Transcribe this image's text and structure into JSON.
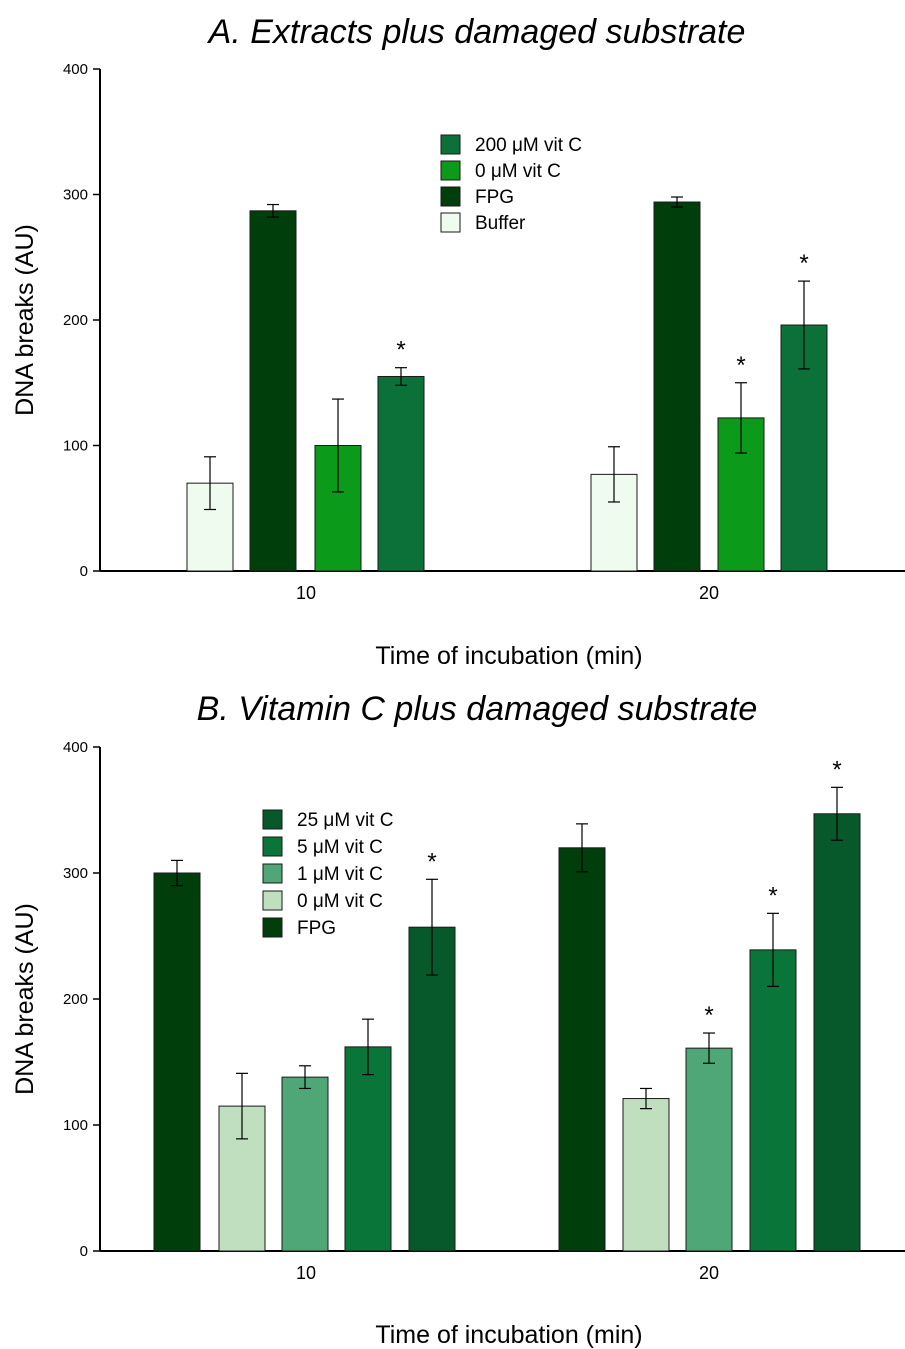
{
  "chart_data": [
    {
      "type": "bar",
      "title": "A. Extracts plus damaged substrate",
      "xlabel": "Time of incubation (min)",
      "ylabel": "DNA breaks (AU)",
      "ylim": [
        0,
        400
      ],
      "yticks": [
        "0",
        "100",
        "200",
        "300",
        "400"
      ],
      "categories": [
        "10",
        "20"
      ],
      "legend_position": "top-center",
      "legend": [
        "200 μM vit C",
        "0 μM vit C",
        "FPG",
        "Buffer"
      ],
      "significance_marker": "*",
      "series": [
        {
          "name": "Buffer",
          "color": "#f0fbef",
          "values": [
            70,
            77
          ],
          "errors": [
            21,
            22
          ],
          "significant": [
            false,
            false
          ]
        },
        {
          "name": "FPG",
          "color": "#003f0c",
          "values": [
            287,
            294
          ],
          "errors": [
            5,
            4
          ],
          "significant": [
            false,
            false
          ]
        },
        {
          "name": "0 μM vit C",
          "color": "#0c9a1a",
          "values": [
            100,
            122
          ],
          "errors": [
            37,
            28
          ],
          "significant": [
            false,
            true
          ]
        },
        {
          "name": "200 μM vit C",
          "color": "#0b7139",
          "values": [
            155,
            196
          ],
          "errors": [
            7,
            35
          ],
          "significant": [
            true,
            true
          ]
        }
      ]
    },
    {
      "type": "bar",
      "title": "B. Vitamin C plus damaged substrate",
      "xlabel": "Time of incubation (min)",
      "ylabel": "DNA breaks (AU)",
      "ylim": [
        0,
        400
      ],
      "yticks": [
        "0",
        "100",
        "200",
        "300",
        "400"
      ],
      "categories": [
        "10",
        "20"
      ],
      "legend_position": "top-left",
      "legend": [
        "25 μM vit C",
        "5 μM vit C",
        "1 μM vit C",
        "0 μM vit C",
        "FPG"
      ],
      "significance_marker": "*",
      "series": [
        {
          "name": "FPG",
          "color": "#003f0c",
          "values": [
            300,
            320
          ],
          "errors": [
            10,
            19
          ],
          "significant": [
            false,
            false
          ]
        },
        {
          "name": "0 μM vit C",
          "color": "#c0dfbf",
          "values": [
            115,
            121
          ],
          "errors": [
            26,
            8
          ],
          "significant": [
            false,
            false
          ]
        },
        {
          "name": "1 μM vit C",
          "color": "#4fa778",
          "values": [
            138,
            161
          ],
          "errors": [
            9,
            12
          ],
          "significant": [
            false,
            true
          ]
        },
        {
          "name": "5 μM vit C",
          "color": "#0a7538",
          "values": [
            162,
            239
          ],
          "errors": [
            22,
            29
          ],
          "significant": [
            false,
            true
          ]
        },
        {
          "name": "25 μM vit C",
          "color": "#07592b",
          "values": [
            257,
            347
          ],
          "errors": [
            38,
            21
          ],
          "significant": [
            true,
            true
          ]
        }
      ]
    }
  ]
}
